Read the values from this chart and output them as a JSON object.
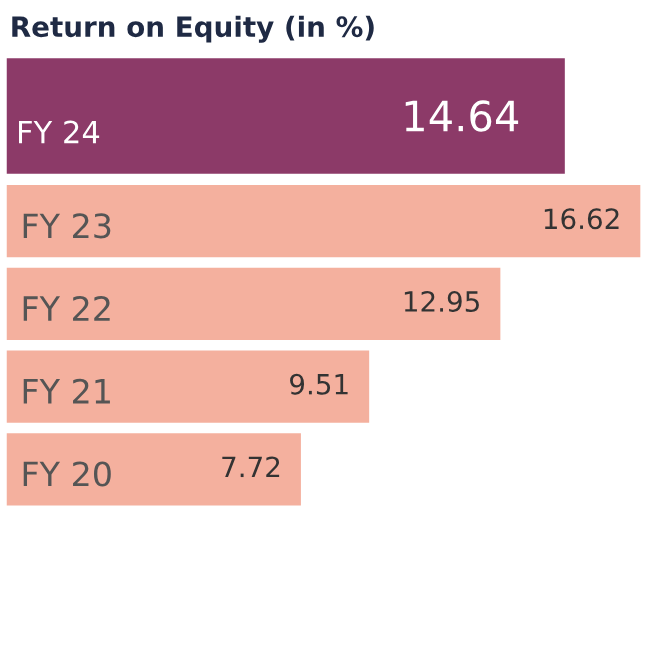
{
  "chart_data": {
    "type": "bar",
    "orientation": "horizontal",
    "title": "Return on Equity (in %)",
    "categories": [
      "FY 24",
      "FY 23",
      "FY 22",
      "FY 21",
      "FY 20"
    ],
    "values": [
      14.64,
      16.62,
      12.95,
      9.51,
      7.72
    ],
    "colors": [
      "#8c3a68",
      "#f4b09e",
      "#f4b09e",
      "#f4b09e",
      "#f4b09e"
    ],
    "data_labels": true
  }
}
